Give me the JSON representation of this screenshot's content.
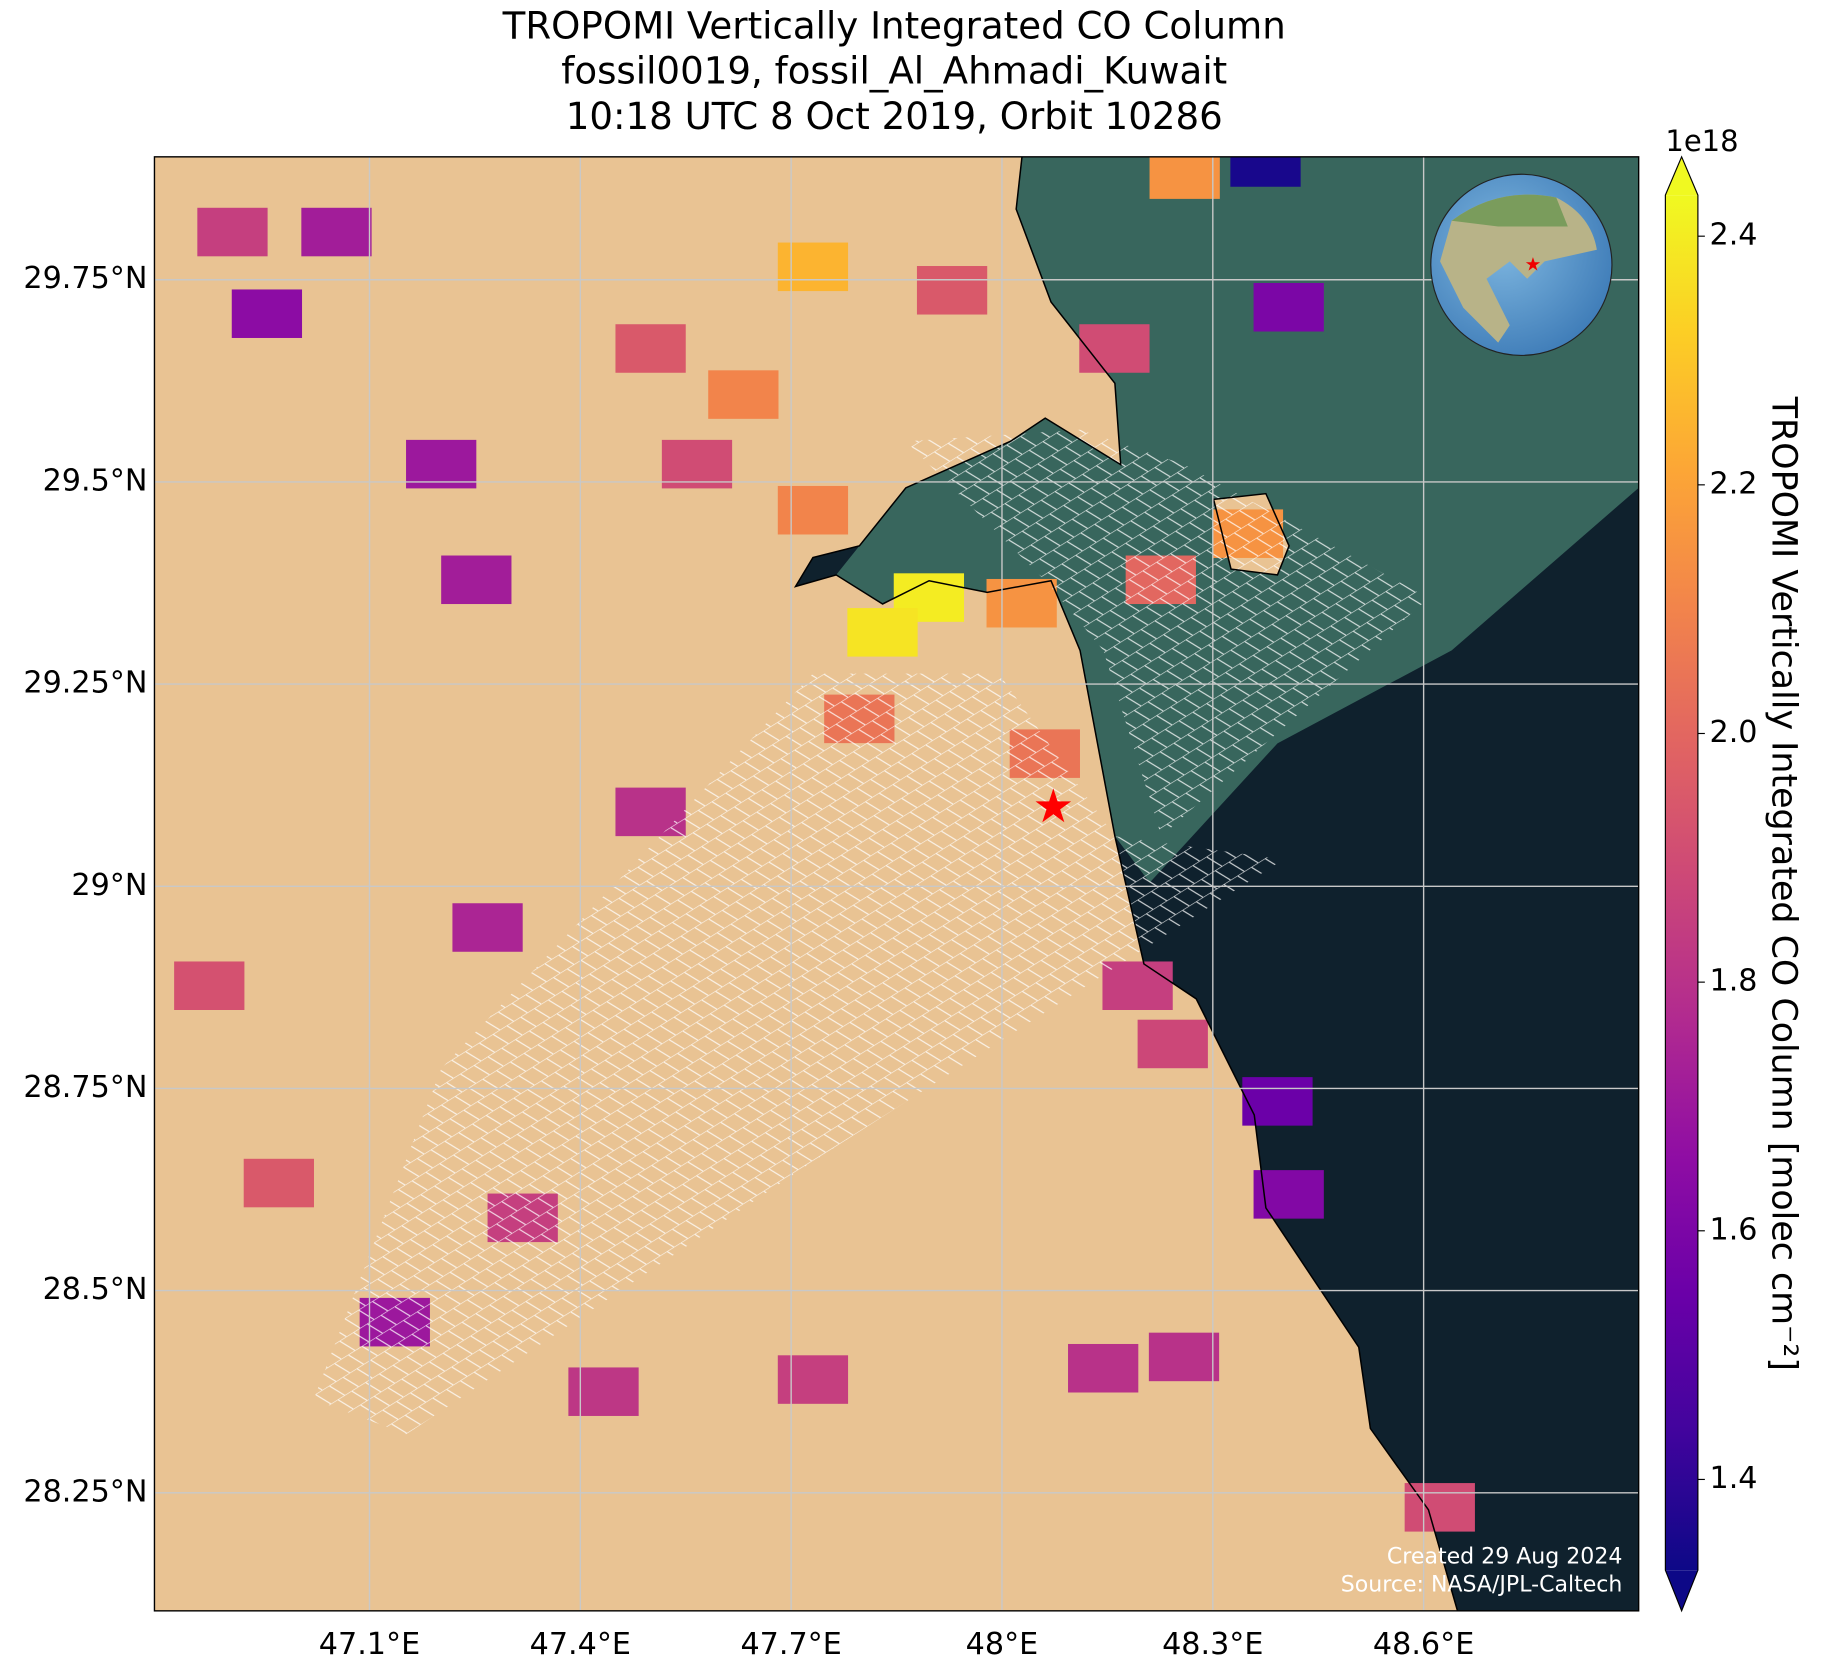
{
  "chart_data": {
    "type": "map",
    "title": [
      "TROPOMI Vertically Integrated CO Column",
      "fossil0019, fossil_Al_Ahmadi_Kuwait",
      "10:18 UTC 8 Oct 2019, Orbit 10286"
    ],
    "xlim": [
      46.794,
      48.906
    ],
    "ylim": [
      28.104,
      29.902
    ],
    "xticks": [
      {
        "value": 47.1,
        "label": "47.1°E"
      },
      {
        "value": 47.4,
        "label": "47.4°E"
      },
      {
        "value": 47.7,
        "label": "47.7°E"
      },
      {
        "value": 48.0,
        "label": "48°E"
      },
      {
        "value": 48.3,
        "label": "48.3°E"
      },
      {
        "value": 48.6,
        "label": "48.6°E"
      }
    ],
    "yticks": [
      {
        "value": 28.25,
        "label": "28.25°N"
      },
      {
        "value": 28.5,
        "label": "28.5°N"
      },
      {
        "value": 28.75,
        "label": "28.75°N"
      },
      {
        "value": 29.0,
        "label": "29°N"
      },
      {
        "value": 29.25,
        "label": "29.25°N"
      },
      {
        "value": 29.5,
        "label": "29.5°N"
      },
      {
        "value": 29.75,
        "label": "29.75°N"
      }
    ],
    "grid": true,
    "colormap": "plasma",
    "clim": [
      1.327,
      2.433
    ],
    "colorbar_label": "TROPOMI Vertically Integrated CO Column [molec cm⁻²]",
    "colorbar_exponent": "1e18",
    "colorbar_ticks": [
      1.4,
      1.6,
      1.8,
      {
        "value": 2.0,
        "label": "2.0"
      },
      2.2,
      2.4
    ],
    "pixels": {
      "lon": [
        47.731,
        47.896,
        47.83,
        48.028,
        48.061,
        48.35,
        48.408,
        48.375,
        48.26,
        47.202,
        47.252,
        46.954,
        47.053,
        46.905,
        47.5,
        47.632,
        48.392,
        48.408,
        48.259,
        48.623,
        46.971,
        46.872,
        47.136,
        47.433,
        47.731,
        48.144,
        48.226,
        48.16,
        47.929,
        47.318,
        47.268,
        47.5,
        47.797,
        48.193,
        48.243,
        47.566,
        47.731
      ],
      "lat": [
        29.766,
        29.357,
        29.314,
        29.35,
        29.164,
        29.436,
        29.716,
        29.895,
        29.88,
        29.522,
        29.379,
        29.708,
        29.809,
        29.809,
        29.665,
        29.608,
        28.734,
        28.619,
        28.418,
        28.232,
        28.633,
        28.877,
        28.461,
        28.375,
        28.39,
        28.404,
        29.379,
        29.665,
        29.737,
        28.59,
        28.949,
        29.092,
        29.207,
        28.877,
        28.805,
        29.522,
        29.465
      ],
      "values": [
        2.25,
        2.4,
        2.38,
        2.15,
        2.05,
        2.15,
        1.6,
        1.35,
        2.15,
        1.7,
        1.72,
        1.65,
        1.72,
        1.85,
        1.95,
        2.1,
        1.55,
        1.62,
        1.8,
        1.9,
        1.95,
        1.92,
        1.7,
        1.82,
        1.85,
        1.8,
        2.0,
        1.9,
        1.95,
        1.85,
        1.75,
        1.8,
        2.05,
        1.85,
        1.88,
        1.9,
        2.1
      ]
    },
    "site": {
      "lon": 48.073,
      "lat": 29.095
    },
    "credits": [
      "Created 29 Aug 2024",
      "Source: NASA/JPL-Caltech"
    ]
  }
}
